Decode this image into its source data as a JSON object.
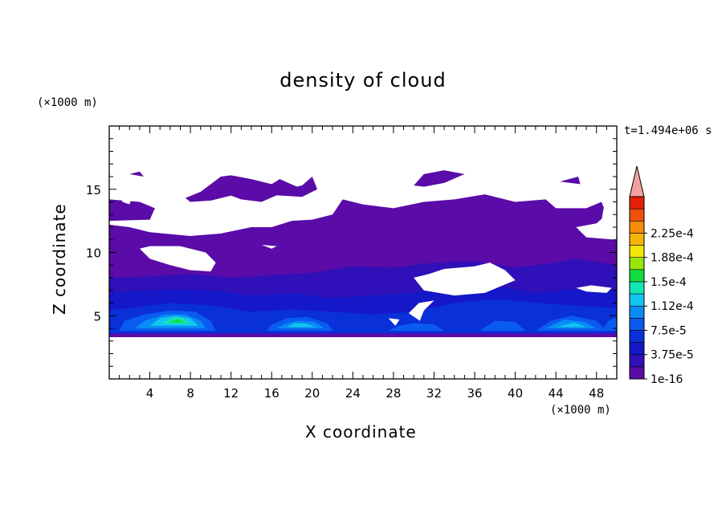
{
  "chart_data": {
    "type": "heatmap",
    "title": "density of cloud",
    "xlabel": "X coordinate",
    "ylabel": "Z coordinate",
    "x_unit": "(×1000 m)",
    "y_unit": "(×1000 m)",
    "timestamp": "t=1.494e+06 s",
    "xlim": [
      0,
      50
    ],
    "ylim": [
      0,
      20
    ],
    "x_ticks": [
      "4",
      "8",
      "12",
      "16",
      "20",
      "24",
      "28",
      "32",
      "36",
      "40",
      "44",
      "48"
    ],
    "x_tick_values": [
      4,
      8,
      12,
      16,
      20,
      24,
      28,
      32,
      36,
      40,
      44,
      48
    ],
    "y_ticks": [
      "5",
      "10",
      "15"
    ],
    "y_tick_values": [
      5,
      10,
      15
    ],
    "colorbar": {
      "labels": [
        "1e-16",
        "3.75e-5",
        "7.5e-5",
        "1.12e-4",
        "1.5e-4",
        "1.88e-4",
        "2.25e-4"
      ],
      "label_values": [
        1e-16,
        3.75e-05,
        7.5e-05,
        0.000112,
        0.00015,
        0.000188,
        0.000225
      ],
      "levels": [
        1e-16,
        1.875e-05,
        3.75e-05,
        5.625e-05,
        7.5e-05,
        9.375e-05,
        0.000112,
        0.000131,
        0.00015,
        0.000169,
        0.000188,
        0.000206,
        0.000225,
        0.000244,
        0.0002625
      ],
      "colors": [
        "#5a0ba8",
        "#3010b8",
        "#1418c8",
        "#0a30d8",
        "#0a5cf0",
        "#0a8cf6",
        "#12c6f0",
        "#14e6b4",
        "#14dc3c",
        "#96e60c",
        "#f0e60a",
        "#f5b40a",
        "#f58c0a",
        "#f0500a",
        "#e61e0a"
      ],
      "extend_color": "#f4a0a0",
      "extend": "max"
    },
    "regions": [
      {
        "level": 0,
        "polygon": [
          [
            0,
            3.3
          ],
          [
            50,
            3.3
          ],
          [
            50,
            11
          ],
          [
            47,
            11.2
          ],
          [
            46,
            12
          ],
          [
            48,
            12.3
          ],
          [
            49,
            13
          ],
          [
            48.5,
            14
          ],
          [
            47,
            13.5
          ],
          [
            44,
            13.5
          ],
          [
            43,
            14.2
          ],
          [
            40,
            14
          ],
          [
            37,
            14.6
          ],
          [
            34,
            14.2
          ],
          [
            31,
            14
          ],
          [
            28,
            13.5
          ],
          [
            25,
            13.8
          ],
          [
            23,
            14.2
          ],
          [
            22,
            13
          ],
          [
            20,
            12.6
          ],
          [
            18,
            12.5
          ],
          [
            16,
            12
          ],
          [
            14,
            12
          ],
          [
            11,
            11.5
          ],
          [
            8,
            11.3
          ],
          [
            4,
            11.6
          ],
          [
            2,
            12
          ],
          [
            0,
            12.2
          ]
        ]
      },
      {
        "level": 0,
        "polygon": [
          [
            0,
            12.5
          ],
          [
            4,
            12.6
          ],
          [
            4.5,
            13.5
          ],
          [
            3,
            14
          ],
          [
            0,
            14.2
          ]
        ]
      },
      {
        "level": 0,
        "polygon": [
          [
            7.5,
            14.3
          ],
          [
            9,
            14.8
          ],
          [
            11,
            16
          ],
          [
            12,
            16.1
          ],
          [
            14,
            15.8
          ],
          [
            16,
            15.4
          ],
          [
            16.8,
            15.8
          ],
          [
            18.5,
            15.2
          ],
          [
            17,
            14.7
          ],
          [
            15,
            14
          ],
          [
            13,
            14.2
          ],
          [
            12,
            14.5
          ],
          [
            10,
            14.1
          ],
          [
            8,
            14
          ]
        ]
      },
      {
        "level": 0,
        "polygon": [
          [
            15,
            14.6
          ],
          [
            19,
            15.3
          ],
          [
            20,
            16
          ],
          [
            20.5,
            15
          ],
          [
            19,
            14.4
          ]
        ]
      },
      {
        "level": 0,
        "polygon": [
          [
            30,
            15.3
          ],
          [
            31,
            16.2
          ],
          [
            33,
            16.5
          ],
          [
            35,
            16.2
          ],
          [
            33,
            15.5
          ],
          [
            31,
            15.2
          ]
        ]
      },
      {
        "level": 0,
        "polygon": [
          [
            2,
            16.2
          ],
          [
            3,
            16.4
          ],
          [
            3.4,
            16
          ]
        ]
      },
      {
        "level": 0,
        "polygon": [
          [
            44.4,
            15.6
          ],
          [
            46.2,
            16
          ],
          [
            46.4,
            15.4
          ]
        ]
      },
      {
        "level": 1,
        "polygon": [
          [
            0,
            3.6
          ],
          [
            50,
            3.6
          ],
          [
            50,
            9
          ],
          [
            46,
            9.5
          ],
          [
            44,
            9.2
          ],
          [
            40,
            8.8
          ],
          [
            36,
            9.3
          ],
          [
            32,
            9.2
          ],
          [
            28,
            8.8
          ],
          [
            24,
            8.9
          ],
          [
            20,
            8.4
          ],
          [
            16,
            8.2
          ],
          [
            12,
            8
          ],
          [
            8,
            8.3
          ],
          [
            4,
            8.1
          ],
          [
            0,
            8
          ]
        ]
      },
      {
        "level": 2,
        "polygon": [
          [
            0,
            3.6
          ],
          [
            50,
            3.6
          ],
          [
            50,
            7
          ],
          [
            46,
            7.1
          ],
          [
            42,
            6.8
          ],
          [
            38,
            7.3
          ],
          [
            34,
            7.4
          ],
          [
            30,
            6.8
          ],
          [
            26,
            6.6
          ],
          [
            22,
            6.4
          ],
          [
            18,
            6.8
          ],
          [
            14,
            6.6
          ],
          [
            10,
            7
          ],
          [
            6,
            7.1
          ],
          [
            2,
            6.9
          ],
          [
            0,
            6.8
          ]
        ]
      },
      {
        "level": 3,
        "polygon": [
          [
            0,
            3.6
          ],
          [
            50,
            3.6
          ],
          [
            50,
            5.6
          ],
          [
            44,
            5.9
          ],
          [
            38,
            6.3
          ],
          [
            34,
            6
          ],
          [
            30,
            5.3
          ],
          [
            26,
            5.1
          ],
          [
            22,
            5.3
          ],
          [
            18,
            5.5
          ],
          [
            14,
            5.3
          ],
          [
            10,
            5.8
          ],
          [
            6,
            6
          ],
          [
            2,
            5.6
          ],
          [
            0,
            5.4
          ]
        ]
      },
      {
        "level": 4,
        "polygon": [
          [
            1,
            3.8
          ],
          [
            10.5,
            3.8
          ],
          [
            10,
            4.6
          ],
          [
            8.5,
            5.3
          ],
          [
            6,
            5.4
          ],
          [
            3.5,
            5.1
          ],
          [
            1.5,
            4.6
          ]
        ]
      },
      {
        "level": 5,
        "polygon": [
          [
            2.5,
            4
          ],
          [
            9.5,
            4
          ],
          [
            9,
            4.6
          ],
          [
            7.5,
            5.1
          ],
          [
            5.5,
            5.1
          ],
          [
            3.5,
            4.6
          ]
        ]
      },
      {
        "level": 6,
        "polygon": [
          [
            4,
            4.2
          ],
          [
            8.8,
            4.2
          ],
          [
            8,
            4.8
          ],
          [
            6.5,
            5
          ],
          [
            5,
            4.8
          ]
        ]
      },
      {
        "level": 7,
        "polygon": [
          [
            5.2,
            4.35
          ],
          [
            8,
            4.35
          ],
          [
            7.3,
            4.8
          ],
          [
            6.2,
            4.85
          ]
        ]
      },
      {
        "level": 8,
        "polygon": [
          [
            5.8,
            4.45
          ],
          [
            7.5,
            4.45
          ],
          [
            6.8,
            4.75
          ]
        ]
      },
      {
        "level": 4,
        "polygon": [
          [
            15.5,
            3.8
          ],
          [
            22,
            3.8
          ],
          [
            21.5,
            4.4
          ],
          [
            19.5,
            4.9
          ],
          [
            17.5,
            4.8
          ],
          [
            16,
            4.3
          ]
        ]
      },
      {
        "level": 5,
        "polygon": [
          [
            16.5,
            4
          ],
          [
            21.2,
            4
          ],
          [
            20.2,
            4.5
          ],
          [
            18.5,
            4.6
          ],
          [
            17.2,
            4.3
          ]
        ]
      },
      {
        "level": 6,
        "polygon": [
          [
            17.5,
            4.1
          ],
          [
            20.3,
            4.1
          ],
          [
            19.3,
            4.4
          ],
          [
            18.3,
            4.4
          ]
        ]
      },
      {
        "level": 4,
        "polygon": [
          [
            27.5,
            3.8
          ],
          [
            33,
            3.8
          ],
          [
            32,
            4.3
          ],
          [
            30,
            4.4
          ],
          [
            28.5,
            4.2
          ]
        ]
      },
      {
        "level": 4,
        "polygon": [
          [
            36.5,
            3.8
          ],
          [
            41,
            3.8
          ],
          [
            40,
            4.5
          ],
          [
            38,
            4.6
          ]
        ]
      },
      {
        "level": 4,
        "polygon": [
          [
            42,
            3.8
          ],
          [
            49,
            3.8
          ],
          [
            48,
            4.6
          ],
          [
            45.5,
            5
          ],
          [
            43.5,
            4.6
          ]
        ]
      },
      {
        "level": 5,
        "polygon": [
          [
            43,
            4
          ],
          [
            48,
            4
          ],
          [
            46.8,
            4.5
          ],
          [
            44.8,
            4.7
          ]
        ]
      },
      {
        "level": 6,
        "polygon": [
          [
            44,
            4.1
          ],
          [
            47,
            4.1
          ],
          [
            45.8,
            4.45
          ]
        ]
      },
      {
        "level": 4,
        "polygon": [
          [
            48.5,
            3.8
          ],
          [
            50,
            3.8
          ],
          [
            50,
            4.9
          ],
          [
            49.2,
            4.6
          ]
        ]
      }
    ],
    "gaps": [
      {
        "polygon": [
          [
            3,
            10.3
          ],
          [
            4,
            9.5
          ],
          [
            6,
            9
          ],
          [
            8,
            8.6
          ],
          [
            10,
            8.5
          ],
          [
            10.5,
            9.2
          ],
          [
            9.5,
            10
          ],
          [
            7,
            10.5
          ],
          [
            4,
            10.5
          ]
        ]
      },
      {
        "polygon": [
          [
            1,
            14.8
          ],
          [
            1.3,
            14
          ],
          [
            2,
            13.8
          ],
          [
            2.3,
            14.5
          ]
        ]
      },
      {
        "polygon": [
          [
            16,
            10.3
          ],
          [
            15,
            10.6
          ],
          [
            16.5,
            10.5
          ]
        ]
      },
      {
        "polygon": [
          [
            30,
            8
          ],
          [
            31,
            7
          ],
          [
            34,
            6.6
          ],
          [
            37,
            6.8
          ],
          [
            38.5,
            7.3
          ],
          [
            40,
            7.8
          ],
          [
            39,
            8.6
          ],
          [
            37.5,
            9.2
          ],
          [
            36,
            8.9
          ],
          [
            33,
            8.7
          ],
          [
            31.5,
            8.3
          ]
        ]
      },
      {
        "polygon": [
          [
            46,
            7.2
          ],
          [
            47.5,
            7.4
          ],
          [
            49.5,
            7.2
          ],
          [
            49,
            6.8
          ],
          [
            47,
            6.9
          ]
        ]
      },
      {
        "polygon": [
          [
            29.5,
            5.2
          ],
          [
            30.5,
            6
          ],
          [
            32,
            6.2
          ],
          [
            31,
            5.4
          ],
          [
            30.6,
            4.6
          ]
        ]
      },
      {
        "polygon": [
          [
            27.5,
            4.8
          ],
          [
            28.6,
            4.7
          ],
          [
            28.2,
            4.2
          ]
        ]
      },
      {
        "polygon": [
          [
            48.5,
            12.5
          ],
          [
            49.5,
            12.6
          ],
          [
            50,
            13.2
          ],
          [
            49.8,
            13.8
          ],
          [
            48.7,
            13.5
          ]
        ]
      }
    ]
  }
}
